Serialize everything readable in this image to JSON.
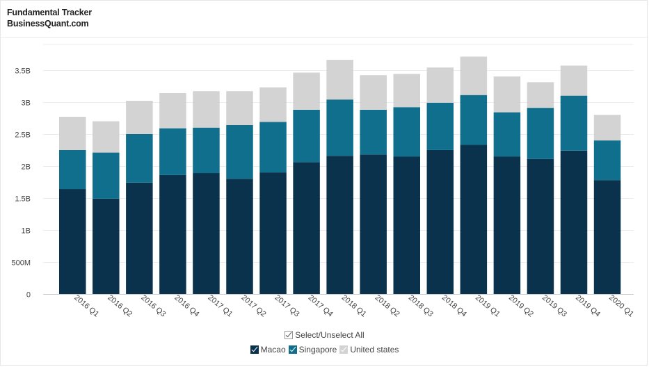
{
  "header": {
    "title": "Fundamental Tracker",
    "subtitle": "BusinessQuant.com"
  },
  "legend": {
    "select_all_label": "Select/Unselect All",
    "items": [
      {
        "label": "Macao",
        "color": "#0b324d"
      },
      {
        "label": "Singapore",
        "color": "#0f6f8c"
      },
      {
        "label": "United states",
        "color": "#d3d3d3"
      }
    ]
  },
  "chart_data": {
    "type": "bar",
    "stacked": true,
    "grid": true,
    "ylim": [
      0,
      3.9
    ],
    "y_ticks": [
      {
        "value": 0,
        "label": "0"
      },
      {
        "value": 0.5,
        "label": "500M"
      },
      {
        "value": 1,
        "label": "1B"
      },
      {
        "value": 1.5,
        "label": "1.5B"
      },
      {
        "value": 2,
        "label": "2B"
      },
      {
        "value": 2.5,
        "label": "2.5B"
      },
      {
        "value": 3,
        "label": "3B"
      },
      {
        "value": 3.5,
        "label": "3.5B"
      }
    ],
    "categories": [
      "2016 Q1",
      "2016 Q2",
      "2016 Q3",
      "2016 Q4",
      "2017 Q1",
      "2017 Q2",
      "2017 Q3",
      "2017 Q4",
      "2018 Q1",
      "2018 Q2",
      "2018 Q3",
      "2018 Q4",
      "2019 Q1",
      "2019 Q2",
      "2019 Q3",
      "2019 Q4",
      "2020 Q1"
    ],
    "series": [
      {
        "name": "Macao",
        "color": "#0b324d",
        "values": [
          1.64,
          1.49,
          1.74,
          1.86,
          1.89,
          1.8,
          1.9,
          2.06,
          2.16,
          2.18,
          2.15,
          2.25,
          2.33,
          2.15,
          2.11,
          2.24,
          1.78
        ]
      },
      {
        "name": "Singapore",
        "color": "#0f6f8c",
        "values": [
          0.61,
          0.72,
          0.76,
          0.73,
          0.71,
          0.84,
          0.79,
          0.82,
          0.88,
          0.7,
          0.77,
          0.74,
          0.78,
          0.69,
          0.8,
          0.86,
          0.62
        ]
      },
      {
        "name": "United states",
        "color": "#d3d3d3",
        "values": [
          0.52,
          0.49,
          0.52,
          0.55,
          0.57,
          0.53,
          0.54,
          0.58,
          0.62,
          0.54,
          0.52,
          0.55,
          0.6,
          0.56,
          0.4,
          0.47,
          0.4
        ]
      }
    ],
    "unit": "B"
  }
}
